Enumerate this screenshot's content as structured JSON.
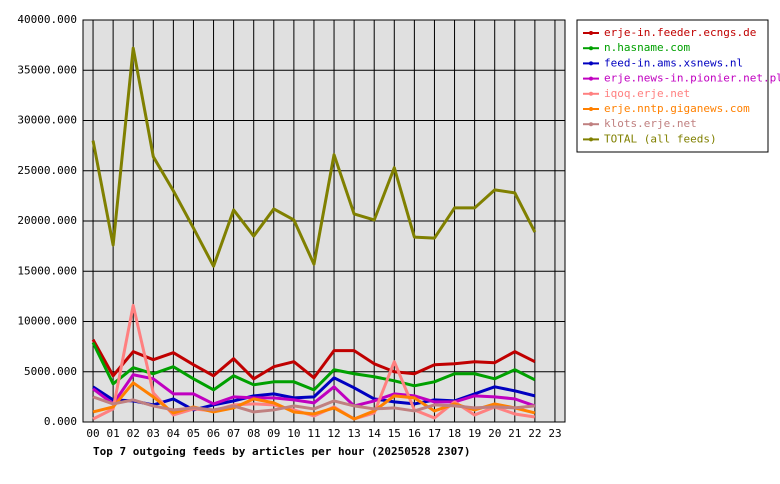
{
  "chart_data": {
    "type": "line",
    "title": "Top 7 outgoing feeds by articles per hour (20250528 2307)",
    "categories": [
      "00",
      "01",
      "02",
      "03",
      "04",
      "05",
      "06",
      "07",
      "08",
      "09",
      "10",
      "11",
      "12",
      "13",
      "14",
      "15",
      "16",
      "17",
      "18",
      "19",
      "20",
      "21",
      "22",
      "23"
    ],
    "ylim": [
      0,
      40000
    ],
    "yticks": [
      {
        "value": 0,
        "label": "0.000"
      },
      {
        "value": 5000,
        "label": "5000.000"
      },
      {
        "value": 10000,
        "label": "10000.000"
      },
      {
        "value": 15000,
        "label": "15000.000"
      },
      {
        "value": 20000,
        "label": "20000.000"
      },
      {
        "value": 25000,
        "label": "25000.000"
      },
      {
        "value": 30000,
        "label": "30000.000"
      },
      {
        "value": 35000,
        "label": "35000.000"
      },
      {
        "value": 40000,
        "label": "40000.000"
      }
    ],
    "grid": true,
    "legend": "right",
    "series": [
      {
        "name": "erje-in.feeder.ecngs.de",
        "color": "#c00000",
        "values": [
          8200,
          4600,
          7000,
          6200,
          6900,
          5700,
          4600,
          6300,
          4300,
          5500,
          6000,
          4400,
          7100,
          7100,
          5800,
          5000,
          4800,
          5700,
          5800,
          6000,
          5900,
          7000,
          6000,
          null
        ]
      },
      {
        "name": "n.hasname.com",
        "color": "#00a000",
        "values": [
          7900,
          3800,
          5400,
          4800,
          5500,
          4300,
          3200,
          4600,
          3700,
          4000,
          4000,
          3200,
          5200,
          4800,
          4500,
          4100,
          3600,
          4000,
          4800,
          4800,
          4300,
          5200,
          4200,
          null
        ]
      },
      {
        "name": "feed-in.ams.xsnews.nl",
        "color": "#0000c0",
        "values": [
          3500,
          2200,
          2100,
          1700,
          2300,
          1200,
          1700,
          2100,
          2600,
          2800,
          2400,
          2500,
          4400,
          3400,
          2300,
          2000,
          1800,
          2200,
          2100,
          2800,
          3500,
          3100,
          2600,
          null
        ]
      },
      {
        "name": "erje.news-in.pionier.net.pl",
        "color": "#c000c0",
        "values": [
          3300,
          1800,
          4700,
          4300,
          2800,
          2800,
          1800,
          2500,
          2400,
          2400,
          2200,
          1900,
          3500,
          1600,
          2100,
          2800,
          2600,
          2000,
          2000,
          2600,
          2500,
          2300,
          1600,
          null
        ]
      },
      {
        "name": "iqoq.erje.net",
        "color": "#ff8080",
        "values": [
          300,
          1300,
          11600,
          2900,
          700,
          1300,
          1100,
          1700,
          1800,
          1700,
          1200,
          600,
          1500,
          300,
          900,
          6000,
          1200,
          400,
          2000,
          700,
          1500,
          800,
          500,
          null
        ]
      },
      {
        "name": "erje.nntp.giganews.com",
        "color": "#ff8000",
        "values": [
          1000,
          1500,
          3900,
          2500,
          900,
          1500,
          1000,
          1400,
          2300,
          1900,
          1000,
          800,
          1400,
          300,
          1100,
          2600,
          2400,
          1100,
          1800,
          1200,
          1800,
          1400,
          900,
          null
        ]
      },
      {
        "name": "klots.erje.net",
        "color": "#c08080",
        "values": [
          2500,
          1800,
          2200,
          1600,
          1200,
          1400,
          1200,
          1600,
          1000,
          1200,
          1600,
          1300,
          2100,
          1600,
          1300,
          1400,
          1100,
          1700,
          1600,
          1400,
          1500,
          1400,
          1600,
          null
        ]
      },
      {
        "name": "TOTAL (all feeds)",
        "color": "#808000",
        "values": [
          28000,
          17600,
          37200,
          26400,
          23000,
          19300,
          15500,
          21100,
          18500,
          21200,
          20100,
          15700,
          26600,
          20700,
          20100,
          25300,
          18400,
          18300,
          21300,
          21300,
          23100,
          22800,
          18900,
          null
        ]
      }
    ]
  }
}
